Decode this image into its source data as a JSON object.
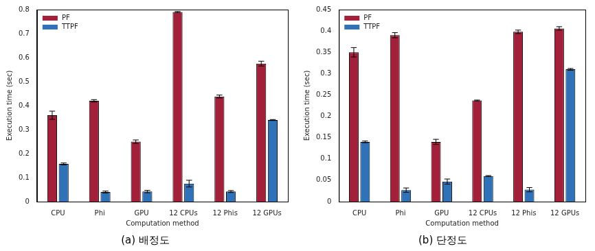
{
  "chart_data": [
    {
      "type": "bar",
      "title": "(a) 배정도",
      "x_label": "Computation method",
      "y_label": "Execution time (sec)",
      "categories": [
        "CPU",
        "Phi",
        "GPU",
        "12 CPUs",
        "12 Phis",
        "12 GPUs"
      ],
      "series": [
        {
          "name": "PF",
          "color": "#a3203a",
          "values": [
            0.36,
            0.42,
            0.25,
            0.79,
            0.438,
            0.575
          ],
          "error": [
            0.017,
            0.005,
            0.007,
            0.002,
            0.006,
            0.01
          ]
        },
        {
          "name": "TTPF",
          "color": "#2f72b8",
          "values": [
            0.157,
            0.04,
            0.042,
            0.075,
            0.042,
            0.34
          ],
          "error": [
            0.004,
            0.004,
            0.005,
            0.014,
            0.004,
            0.002
          ]
        }
      ],
      "ylim": [
        0,
        0.8
      ],
      "yticks": [
        0,
        0.1,
        0.2,
        0.3,
        0.4,
        0.5,
        0.6,
        0.7,
        0.8
      ],
      "grid": false,
      "legend": "upper left"
    },
    {
      "type": "bar",
      "title": "(b) 단정도",
      "x_label": "Computation method",
      "y_label": "Execution time (sec)",
      "categories": [
        "CPU",
        "Phi",
        "GPU",
        "12 CPUs",
        "12 Phis",
        "12 GPUs"
      ],
      "series": [
        {
          "name": "PF",
          "color": "#a3203a",
          "values": [
            0.35,
            0.39,
            0.14,
            0.237,
            0.398,
            0.406
          ],
          "error": [
            0.011,
            0.006,
            0.006,
            0.001,
            0.004,
            0.004
          ]
        },
        {
          "name": "TTPF",
          "color": "#2f72b8",
          "values": [
            0.14,
            0.027,
            0.047,
            0.06,
            0.028,
            0.31
          ],
          "error": [
            0.002,
            0.005,
            0.006,
            0.001,
            0.005,
            0.002
          ]
        }
      ],
      "ylim": [
        0,
        0.45
      ],
      "yticks": [
        0,
        0.05,
        0.1,
        0.15,
        0.2,
        0.25,
        0.3,
        0.35,
        0.4,
        0.45
      ],
      "grid": false,
      "legend": "upper left"
    }
  ]
}
